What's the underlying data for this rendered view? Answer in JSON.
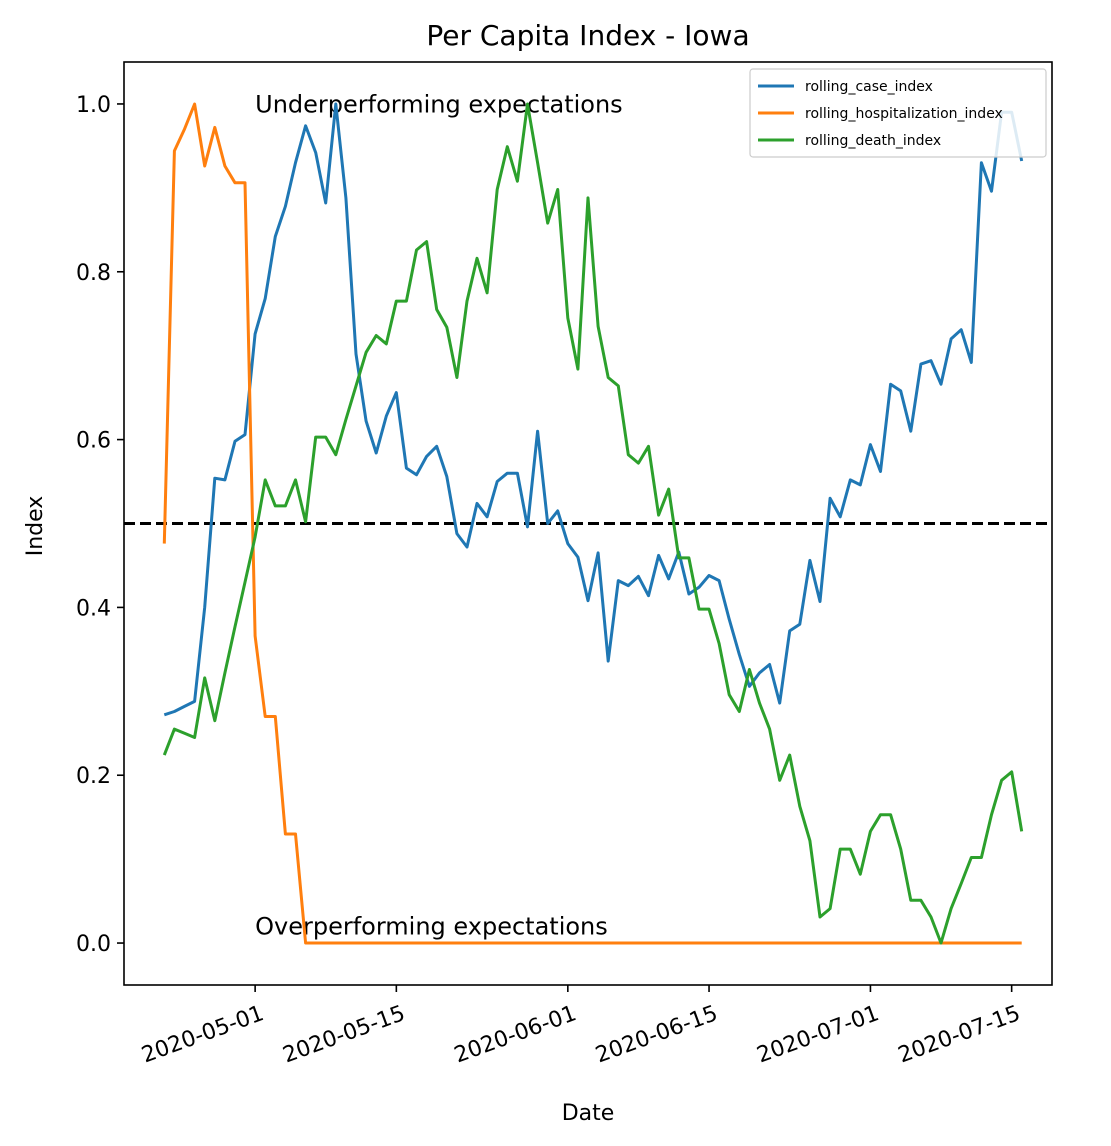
{
  "chart_data": {
    "type": "line",
    "title": "Per Capita Index - Iowa",
    "xlabel": "Date",
    "ylabel": "Index",
    "x_start": "2020-04-22",
    "xlim": [
      "2020-04-18",
      "2020-07-19"
    ],
    "ylim": [
      -0.05,
      1.05
    ],
    "x_ticks": [
      "2020-05-01",
      "2020-05-15",
      "2020-06-01",
      "2020-06-15",
      "2020-07-01",
      "2020-07-15"
    ],
    "y_ticks": [
      0.0,
      0.2,
      0.4,
      0.6,
      0.8,
      1.0
    ],
    "y_tick_labels": [
      "0.0",
      "0.2",
      "0.4",
      "0.6",
      "0.8",
      "1.0"
    ],
    "grid": false,
    "legend_position": "top-right",
    "reference_line": {
      "y": 0.5,
      "style": "dashed",
      "color": "#000000"
    },
    "annotations": [
      {
        "text": "Underperforming expectations",
        "x": "2020-05-01",
        "y": 0.99
      },
      {
        "text": "Overperforming expectations",
        "x": "2020-05-01",
        "y": 0.01
      }
    ],
    "series": [
      {
        "name": "rolling_case_index",
        "color": "#1f77b4",
        "values": [
          0.272,
          0.276,
          0.282,
          0.288,
          0.4,
          0.554,
          0.552,
          0.598,
          0.606,
          0.726,
          0.768,
          0.842,
          0.878,
          0.93,
          0.974,
          0.942,
          0.882,
          1.0,
          0.888,
          0.702,
          0.622,
          0.584,
          0.628,
          0.656,
          0.566,
          0.558,
          0.58,
          0.592,
          0.556,
          0.488,
          0.472,
          0.524,
          0.508,
          0.55,
          0.56,
          0.56,
          0.496,
          0.61,
          0.5,
          0.515,
          0.476,
          0.46,
          0.408,
          0.465,
          0.336,
          0.432,
          0.426,
          0.437,
          0.414,
          0.462,
          0.434,
          0.466,
          0.416,
          0.424,
          0.438,
          0.432,
          0.386,
          0.344,
          0.306,
          0.322,
          0.332,
          0.286,
          0.372,
          0.38,
          0.456,
          0.407,
          0.53,
          0.508,
          0.552,
          0.546,
          0.594,
          0.562,
          0.666,
          0.658,
          0.61,
          0.69,
          0.694,
          0.666,
          0.72,
          0.731,
          0.692,
          0.93,
          0.896,
          0.99,
          0.99,
          0.932
        ]
      },
      {
        "name": "rolling_hospitalization_index",
        "color": "#ff7f0e",
        "values": [
          0.476,
          0.944,
          0.97,
          1.0,
          0.926,
          0.972,
          0.926,
          0.906,
          0.906,
          0.366,
          0.27,
          0.27,
          0.13,
          0.13,
          0.0,
          0.0,
          0.0,
          0.0,
          0.0,
          0.0,
          0.0,
          0.0,
          0.0,
          0.0,
          0.0,
          0.0,
          0.0,
          0.0,
          0.0,
          0.0,
          0.0,
          0.0,
          0.0,
          0.0,
          0.0,
          0.0,
          0.0,
          0.0,
          0.0,
          0.0,
          0.0,
          0.0,
          0.0,
          0.0,
          0.0,
          0.0,
          0.0,
          0.0,
          0.0,
          0.0,
          0.0,
          0.0,
          0.0,
          0.0,
          0.0,
          0.0,
          0.0,
          0.0,
          0.0,
          0.0,
          0.0,
          0.0,
          0.0,
          0.0,
          0.0,
          0.0,
          0.0,
          0.0,
          0.0,
          0.0,
          0.0,
          0.0,
          0.0,
          0.0,
          0.0,
          0.0,
          0.0,
          0.0,
          0.0,
          0.0,
          0.0,
          0.0,
          0.0,
          0.0,
          0.0,
          0.0
        ]
      },
      {
        "name": "rolling_death_index",
        "color": "#2ca02c",
        "values": [
          0.224,
          0.255,
          0.25,
          0.245,
          0.316,
          0.265,
          0.322,
          0.377,
          0.43,
          0.484,
          0.552,
          0.521,
          0.521,
          0.552,
          0.502,
          0.603,
          0.603,
          0.582,
          0.624,
          0.664,
          0.704,
          0.724,
          0.714,
          0.765,
          0.765,
          0.826,
          0.836,
          0.755,
          0.734,
          0.674,
          0.765,
          0.816,
          0.775,
          0.898,
          0.949,
          0.908,
          1.0,
          0.93,
          0.858,
          0.898,
          0.745,
          0.684,
          0.888,
          0.735,
          0.674,
          0.664,
          0.582,
          0.572,
          0.592,
          0.51,
          0.541,
          0.459,
          0.459,
          0.398,
          0.398,
          0.357,
          0.296,
          0.276,
          0.326,
          0.286,
          0.255,
          0.194,
          0.224,
          0.163,
          0.122,
          0.031,
          0.041,
          0.112,
          0.112,
          0.082,
          0.133,
          0.153,
          0.153,
          0.112,
          0.051,
          0.051,
          0.031,
          0.0,
          0.041,
          0.071,
          0.102,
          0.102,
          0.153,
          0.194,
          0.204,
          0.133
        ]
      }
    ]
  }
}
